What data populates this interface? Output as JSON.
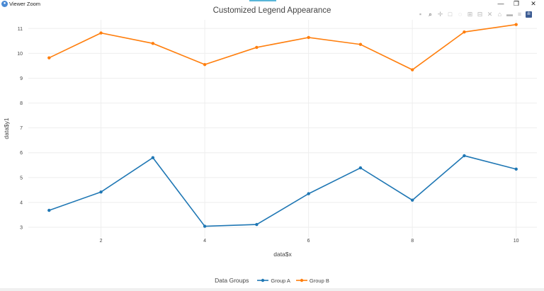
{
  "window": {
    "title": "Viewer Zoom",
    "controls": {
      "minimize": "—",
      "restore": "❐",
      "close": "✕"
    }
  },
  "modebar": {
    "buttons": [
      {
        "name": "camera-icon",
        "glyph": "▪"
      },
      {
        "name": "zoom-icon",
        "glyph": "⌕"
      },
      {
        "name": "pan-icon",
        "glyph": "✛"
      },
      {
        "name": "box-select-icon",
        "glyph": "□"
      },
      {
        "name": "lasso-icon",
        "glyph": "◌"
      },
      {
        "name": "zoom-in-icon",
        "glyph": "⊞"
      },
      {
        "name": "zoom-out-icon",
        "glyph": "⊟"
      },
      {
        "name": "autoscale-icon",
        "glyph": "✕"
      },
      {
        "name": "reset-axes-icon",
        "glyph": "⌂"
      },
      {
        "name": "spike-lines-icon",
        "glyph": "▬"
      },
      {
        "name": "compare-hover-icon",
        "glyph": "≡"
      }
    ],
    "logo": "ılı"
  },
  "chart_data": {
    "type": "line",
    "title": "Customized Legend Appearance",
    "xlabel": "data$x",
    "ylabel": "data$y1",
    "xlim": [
      0.6,
      10.4
    ],
    "ylim": [
      2.6,
      11.35
    ],
    "x_ticks": [
      2,
      4,
      6,
      8,
      10
    ],
    "y_ticks": [
      3,
      4,
      5,
      6,
      7,
      8,
      9,
      10,
      11
    ],
    "grid": true,
    "legend_title": "Data Groups",
    "legend_position": "bottom-center",
    "x": [
      1,
      2,
      3,
      4,
      5,
      6,
      7,
      8,
      9,
      10
    ],
    "series": [
      {
        "name": "Group A",
        "color": "#1f77b4",
        "values": [
          3.68,
          4.42,
          5.8,
          3.04,
          3.11,
          4.35,
          5.39,
          4.09,
          5.88,
          5.34
        ]
      },
      {
        "name": "Group B",
        "color": "#ff7f0e",
        "values": [
          9.82,
          10.82,
          10.4,
          9.55,
          10.24,
          10.64,
          10.36,
          9.34,
          10.86,
          11.16
        ]
      }
    ]
  }
}
